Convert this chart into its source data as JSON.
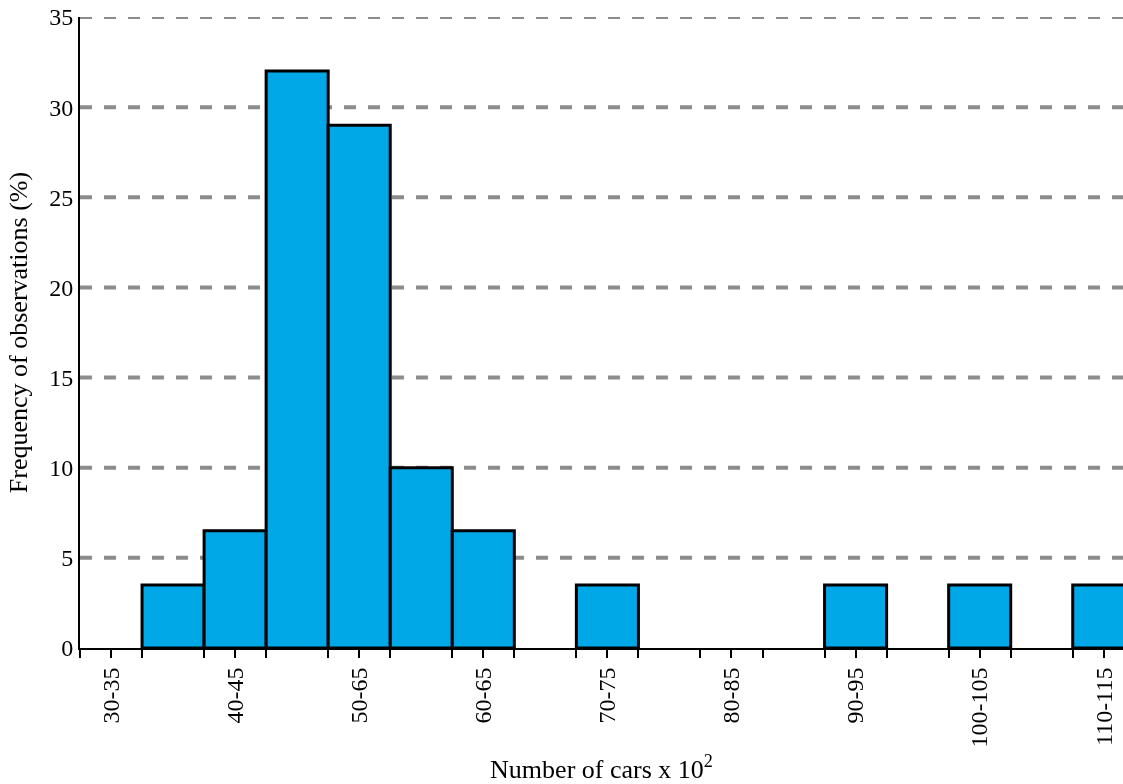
{
  "chart_data": {
    "type": "bar",
    "xlabel": "Number of cars x 10$^{2}$",
    "ylabel": "Frequency of observations (%)",
    "categories": [
      "30-35",
      null,
      "40-45",
      null,
      "50-65",
      null,
      "60-65",
      null,
      "70-75",
      null,
      "80-85",
      null,
      "90-95",
      null,
      "100-105",
      null,
      "110-115"
    ],
    "values": [
      null,
      3.5,
      6.5,
      32,
      29,
      10,
      6.5,
      null,
      3.5,
      null,
      null,
      null,
      3.5,
      null,
      3.5,
      null,
      3.5
    ],
    "color": "#00a8e8",
    "ylim": [
      0,
      35
    ],
    "yticks": [
      0,
      5,
      10,
      15,
      20,
      25,
      30,
      35
    ],
    "grid": "y"
  }
}
